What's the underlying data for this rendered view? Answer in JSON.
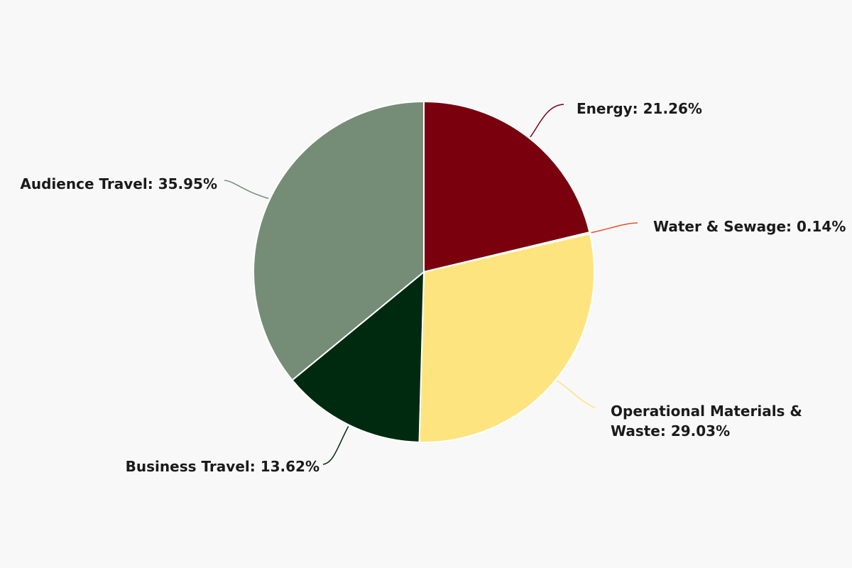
{
  "chart_data": {
    "type": "pie",
    "title": "",
    "start_angle_deg": 0,
    "direction": "clockwise",
    "slices": [
      {
        "name": "Energy",
        "value": 21.26,
        "label": "Energy: 21.26%",
        "color": "#7a000e"
      },
      {
        "name": "Water & Sewage",
        "value": 0.14,
        "label": "Water & Sewage: 0.14%",
        "color": "#e8502a"
      },
      {
        "name": "Operational Materials & Waste",
        "value": 29.03,
        "label_lines": [
          "Operational Materials &",
          "Waste: 29.03%"
        ],
        "color": "#fee47f"
      },
      {
        "name": "Business Travel",
        "value": 13.62,
        "label": "Business Travel: 13.62%",
        "color": "#002a10"
      },
      {
        "name": "Audience Travel",
        "value": 35.95,
        "label": "Audience Travel: 35.95%",
        "color": "#758d77"
      }
    ]
  }
}
